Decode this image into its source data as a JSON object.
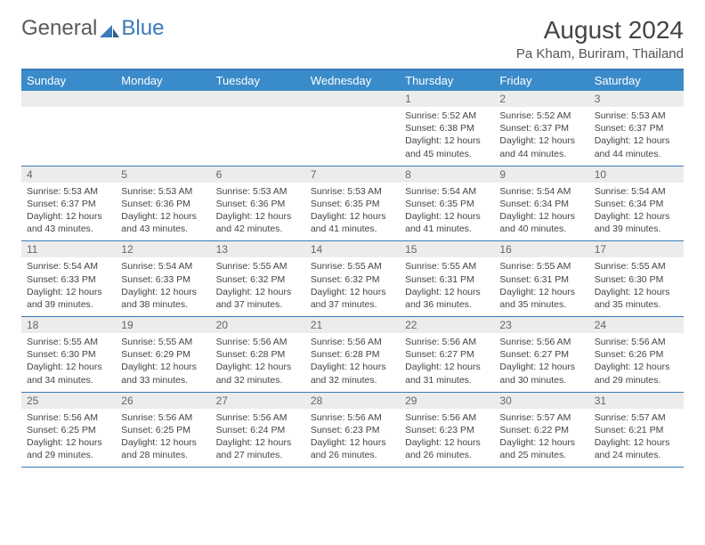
{
  "logo": {
    "general": "General",
    "blue": "Blue"
  },
  "title": "August 2024",
  "subtitle": "Pa Kham, Buriram, Thailand",
  "colors": {
    "header_bg": "#3a8bc9",
    "rule": "#3a7ab8",
    "daynum_bg": "#ececec",
    "text": "#444444"
  },
  "day_headers": [
    "Sunday",
    "Monday",
    "Tuesday",
    "Wednesday",
    "Thursday",
    "Friday",
    "Saturday"
  ],
  "weeks": [
    [
      null,
      null,
      null,
      null,
      {
        "n": "1",
        "sr": "5:52 AM",
        "ss": "6:38 PM",
        "dl": "12 hours and 45 minutes."
      },
      {
        "n": "2",
        "sr": "5:52 AM",
        "ss": "6:37 PM",
        "dl": "12 hours and 44 minutes."
      },
      {
        "n": "3",
        "sr": "5:53 AM",
        "ss": "6:37 PM",
        "dl": "12 hours and 44 minutes."
      }
    ],
    [
      {
        "n": "4",
        "sr": "5:53 AM",
        "ss": "6:37 PM",
        "dl": "12 hours and 43 minutes."
      },
      {
        "n": "5",
        "sr": "5:53 AM",
        "ss": "6:36 PM",
        "dl": "12 hours and 43 minutes."
      },
      {
        "n": "6",
        "sr": "5:53 AM",
        "ss": "6:36 PM",
        "dl": "12 hours and 42 minutes."
      },
      {
        "n": "7",
        "sr": "5:53 AM",
        "ss": "6:35 PM",
        "dl": "12 hours and 41 minutes."
      },
      {
        "n": "8",
        "sr": "5:54 AM",
        "ss": "6:35 PM",
        "dl": "12 hours and 41 minutes."
      },
      {
        "n": "9",
        "sr": "5:54 AM",
        "ss": "6:34 PM",
        "dl": "12 hours and 40 minutes."
      },
      {
        "n": "10",
        "sr": "5:54 AM",
        "ss": "6:34 PM",
        "dl": "12 hours and 39 minutes."
      }
    ],
    [
      {
        "n": "11",
        "sr": "5:54 AM",
        "ss": "6:33 PM",
        "dl": "12 hours and 39 minutes."
      },
      {
        "n": "12",
        "sr": "5:54 AM",
        "ss": "6:33 PM",
        "dl": "12 hours and 38 minutes."
      },
      {
        "n": "13",
        "sr": "5:55 AM",
        "ss": "6:32 PM",
        "dl": "12 hours and 37 minutes."
      },
      {
        "n": "14",
        "sr": "5:55 AM",
        "ss": "6:32 PM",
        "dl": "12 hours and 37 minutes."
      },
      {
        "n": "15",
        "sr": "5:55 AM",
        "ss": "6:31 PM",
        "dl": "12 hours and 36 minutes."
      },
      {
        "n": "16",
        "sr": "5:55 AM",
        "ss": "6:31 PM",
        "dl": "12 hours and 35 minutes."
      },
      {
        "n": "17",
        "sr": "5:55 AM",
        "ss": "6:30 PM",
        "dl": "12 hours and 35 minutes."
      }
    ],
    [
      {
        "n": "18",
        "sr": "5:55 AM",
        "ss": "6:30 PM",
        "dl": "12 hours and 34 minutes."
      },
      {
        "n": "19",
        "sr": "5:55 AM",
        "ss": "6:29 PM",
        "dl": "12 hours and 33 minutes."
      },
      {
        "n": "20",
        "sr": "5:56 AM",
        "ss": "6:28 PM",
        "dl": "12 hours and 32 minutes."
      },
      {
        "n": "21",
        "sr": "5:56 AM",
        "ss": "6:28 PM",
        "dl": "12 hours and 32 minutes."
      },
      {
        "n": "22",
        "sr": "5:56 AM",
        "ss": "6:27 PM",
        "dl": "12 hours and 31 minutes."
      },
      {
        "n": "23",
        "sr": "5:56 AM",
        "ss": "6:27 PM",
        "dl": "12 hours and 30 minutes."
      },
      {
        "n": "24",
        "sr": "5:56 AM",
        "ss": "6:26 PM",
        "dl": "12 hours and 29 minutes."
      }
    ],
    [
      {
        "n": "25",
        "sr": "5:56 AM",
        "ss": "6:25 PM",
        "dl": "12 hours and 29 minutes."
      },
      {
        "n": "26",
        "sr": "5:56 AM",
        "ss": "6:25 PM",
        "dl": "12 hours and 28 minutes."
      },
      {
        "n": "27",
        "sr": "5:56 AM",
        "ss": "6:24 PM",
        "dl": "12 hours and 27 minutes."
      },
      {
        "n": "28",
        "sr": "5:56 AM",
        "ss": "6:23 PM",
        "dl": "12 hours and 26 minutes."
      },
      {
        "n": "29",
        "sr": "5:56 AM",
        "ss": "6:23 PM",
        "dl": "12 hours and 26 minutes."
      },
      {
        "n": "30",
        "sr": "5:57 AM",
        "ss": "6:22 PM",
        "dl": "12 hours and 25 minutes."
      },
      {
        "n": "31",
        "sr": "5:57 AM",
        "ss": "6:21 PM",
        "dl": "12 hours and 24 minutes."
      }
    ]
  ],
  "labels": {
    "sunrise": "Sunrise:",
    "sunset": "Sunset:",
    "daylight": "Daylight:"
  }
}
